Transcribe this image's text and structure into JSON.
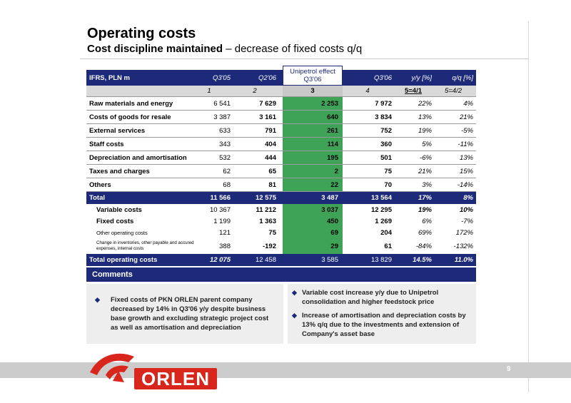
{
  "slide": {
    "title": "Operating costs",
    "subtitle_bold": "Cost discipline maintained",
    "subtitle_rest": " – decrease of fixed costs q/q",
    "page_number": "9"
  },
  "table": {
    "header": {
      "label": "IFRS, PLN m",
      "q305": "Q3'05",
      "q206": "Q2'06",
      "unipetrol_line1": "Unipetrol effect",
      "unipetrol_line2": "Q3'06",
      "q306": "Q3'06",
      "yy": "y/y [%]",
      "qq": "q/q [%]"
    },
    "index": [
      "1",
      "2",
      "3",
      "4",
      "5=4/1",
      "5=4/2"
    ],
    "rows": [
      {
        "label": "Raw materials and energy",
        "q305": "6 541",
        "q206": "7 629",
        "uni": "2 253",
        "q306": "7 972",
        "yy": "22%",
        "qq": "4%"
      },
      {
        "label": "Costs of goods for resale",
        "q305": "3 387",
        "q206": "3 161",
        "uni": "640",
        "q306": "3 834",
        "yy": "13%",
        "qq": "21%"
      },
      {
        "label": "External services",
        "q305": "633",
        "q206": "791",
        "uni": "261",
        "q306": "752",
        "yy": "19%",
        "qq": "-5%"
      },
      {
        "label": "Staff costs",
        "q305": "343",
        "q206": "404",
        "uni": "114",
        "q306": "360",
        "yy": "5%",
        "qq": "-11%"
      },
      {
        "label": "Depreciation and amortisation",
        "q305": "532",
        "q206": "444",
        "uni": "195",
        "q306": "501",
        "yy": "-6%",
        "qq": "13%"
      },
      {
        "label": "Taxes and charges",
        "q305": "62",
        "q206": "65",
        "uni": "2",
        "q306": "75",
        "yy": "21%",
        "qq": "15%"
      },
      {
        "label": "Others",
        "q305": "68",
        "q206": "81",
        "uni": "22",
        "q306": "70",
        "yy": "3%",
        "qq": "-14%"
      }
    ],
    "total": {
      "label": "Total",
      "q305": "11 566",
      "q206": "12 575",
      "uni": "3 487",
      "q306": "13 564",
      "yy": "17%",
      "qq": "8%"
    },
    "sub_rows": [
      {
        "label": "Variable costs",
        "q305": "10 367",
        "q206": "11 212",
        "uni": "3 037",
        "q306": "12 295",
        "yy": "19%",
        "qq": "10%"
      },
      {
        "label": "Fixed costs",
        "q305": "1 199",
        "q206": "1 363",
        "uni": "450",
        "q306": "1 269",
        "yy": "6%",
        "qq": "-7%"
      },
      {
        "label": "Other operating costs",
        "q305": "121",
        "q206": "75",
        "uni": "69",
        "q306": "204",
        "yy": "69%",
        "qq": "172%"
      },
      {
        "label": "Change in inventories, other payable and accured expenses, internal costs",
        "q305": "388",
        "q206": "-192",
        "uni": "29",
        "q306": "61",
        "yy": "-84%",
        "qq": "-132%"
      }
    ],
    "total_operating": {
      "label": "Total operating costs",
      "q305": "12 075",
      "q206": "12 458",
      "uni": "3 585",
      "q306": "13 829",
      "yy": "14.5%",
      "qq": "11.0%"
    }
  },
  "comments": {
    "title": "Comments",
    "left": [
      "Fixed costs of PKN ORLEN parent company decreased by 14% in Q3'06 y/y despite business base growth and excluding strategic project cost as well as amortisation and depreciation"
    ],
    "right": [
      "Variable cost increase y/y due to Unipetrol consolidation and higher feedstock price",
      "Increase of amortisation and depreciation costs by 13% q/q due to the investments and extension of Company's asset base"
    ]
  },
  "logo": {
    "text": "ORLEN"
  },
  "colors": {
    "navy": "#1d2a7a",
    "green": "#3fa357",
    "red": "#d9261c",
    "grey": "#cccccc"
  }
}
